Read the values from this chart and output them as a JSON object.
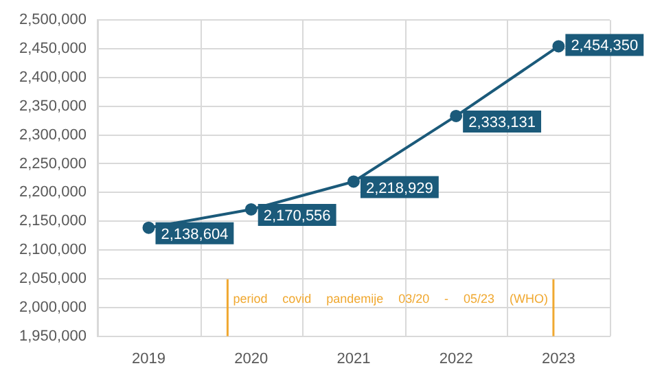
{
  "chart_data": {
    "type": "line",
    "x": [
      2019,
      2020,
      2021,
      2022,
      2023
    ],
    "series": [
      {
        "color": "#1b5a7a",
        "values": [
          2138604,
          2170556,
          2218929,
          2333131,
          2454350
        ],
        "value_labels": [
          "2,138,604",
          "2,170,556",
          "2,218,929",
          "2,333,131",
          "2,454,350"
        ]
      }
    ],
    "xlim": [
      2018.5,
      2023.5
    ],
    "xticks": [
      2019,
      2020,
      2021,
      2022,
      2023
    ],
    "ylim": [
      1950000,
      2500000
    ],
    "yticks": [
      {
        "value": 1950000,
        "label": "1,950,000"
      },
      {
        "value": 2000000,
        "label": "2,000,000"
      },
      {
        "value": 2050000,
        "label": "2,050,000"
      },
      {
        "value": 2100000,
        "label": "2,100,000"
      },
      {
        "value": 2150000,
        "label": "2,150,000"
      },
      {
        "value": 2200000,
        "label": "2,200,000"
      },
      {
        "value": 2250000,
        "label": "2,250,000"
      },
      {
        "value": 2300000,
        "label": "2,300,000"
      },
      {
        "value": 2350000,
        "label": "2,350,000"
      },
      {
        "value": 2400000,
        "label": "2,400,000"
      },
      {
        "value": 2450000,
        "label": "2,450,000"
      },
      {
        "value": 2500000,
        "label": "2,500,000"
      }
    ],
    "ref_lines": [
      {
        "axis": "x",
        "value": 2019.77,
        "color": "#f0a830"
      },
      {
        "axis": "x",
        "value": 2022.95,
        "color": "#f0a830"
      }
    ],
    "annotations": [
      "period covid pandemije 03/20 - 05/23 (WHO)"
    ],
    "grid": true,
    "legend": false,
    "marker": "circle",
    "line_style": "solid"
  }
}
